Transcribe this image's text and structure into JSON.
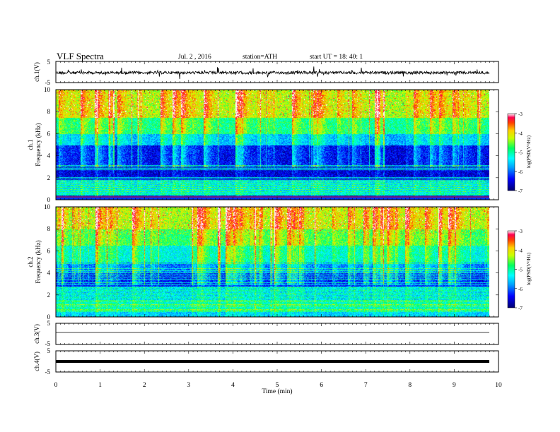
{
  "header": {
    "title": "VLF  Spectra",
    "date": "Jul.  2  , 2016",
    "station": "station=ATH",
    "start": "start  UT  =    18: 40: 1"
  },
  "chart_data": [
    {
      "type": "line",
      "ylabel": "ch.1(V)",
      "ylim": [
        -5,
        5
      ],
      "yticks": [
        "5",
        "-5"
      ],
      "trace": "noisy"
    },
    {
      "type": "heatmap",
      "ylabel_channel": "ch.1",
      "ylabel": "Frequency  (kHz)",
      "ylim": [
        0,
        10
      ],
      "yticks": [
        "0",
        "2",
        "4",
        "6",
        "8",
        "10"
      ],
      "colorbar": {
        "label": "log(PSD(V²/Hz)",
        "range": [
          -7,
          -3
        ],
        "ticks": [
          "-3",
          "-4",
          "-5",
          "-6",
          "-7"
        ]
      }
    },
    {
      "type": "heatmap",
      "ylabel_channel": "ch.2",
      "ylabel": "Frequency  (kHz)",
      "ylim": [
        0,
        10
      ],
      "yticks": [
        "0",
        "2",
        "4",
        "6",
        "8",
        "10"
      ],
      "colorbar": {
        "label": "log(PSD(V²/Hz)",
        "range": [
          -7,
          -3
        ],
        "ticks": [
          "-3",
          "-4",
          "-5",
          "-6",
          "-7"
        ]
      }
    },
    {
      "type": "line",
      "ylabel": "ch.3(V)",
      "ylim": [
        -5,
        5
      ],
      "yticks": [
        "5",
        "-5"
      ],
      "trace": "flat"
    },
    {
      "type": "line",
      "ylabel": "ch.4(V)",
      "ylim": [
        -5,
        5
      ],
      "yticks": [
        "5",
        "-5"
      ],
      "trace": "thick-flat"
    }
  ],
  "xaxis": {
    "label": "Time  (min)",
    "range": [
      0,
      10
    ],
    "ticks": [
      "0",
      "1",
      "2",
      "3",
      "4",
      "5",
      "6",
      "7",
      "8",
      "9",
      "10"
    ]
  }
}
